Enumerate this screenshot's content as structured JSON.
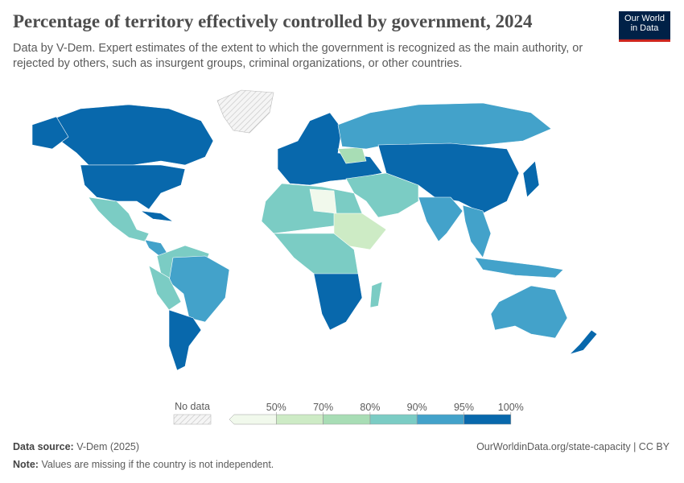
{
  "header": {
    "title": "Percentage of territory effectively controlled by government, 2024",
    "subtitle": "Data by V-Dem. Expert estimates of the extent to which the government is recognized as the main authority, or rejected by others, such as insurgent groups, criminal organizations, or other countries.",
    "logo": [
      "Our World",
      "in Data"
    ]
  },
  "legend": {
    "no_data": "No data",
    "ticks": [
      "50%",
      "70%",
      "80%",
      "90%",
      "95%",
      "100%"
    ],
    "colors": [
      "#f1f9ec",
      "#cdebc5",
      "#a8ddb5",
      "#7bccc4",
      "#43a2ca",
      "#0868ac"
    ]
  },
  "footer": {
    "source_label": "Data source:",
    "source": "V-Dem (2025)",
    "url": "OurWorldinData.org/state-capacity | CC BY",
    "note_label": "Note:",
    "note": "Values are missing if the country is not independent."
  }
}
